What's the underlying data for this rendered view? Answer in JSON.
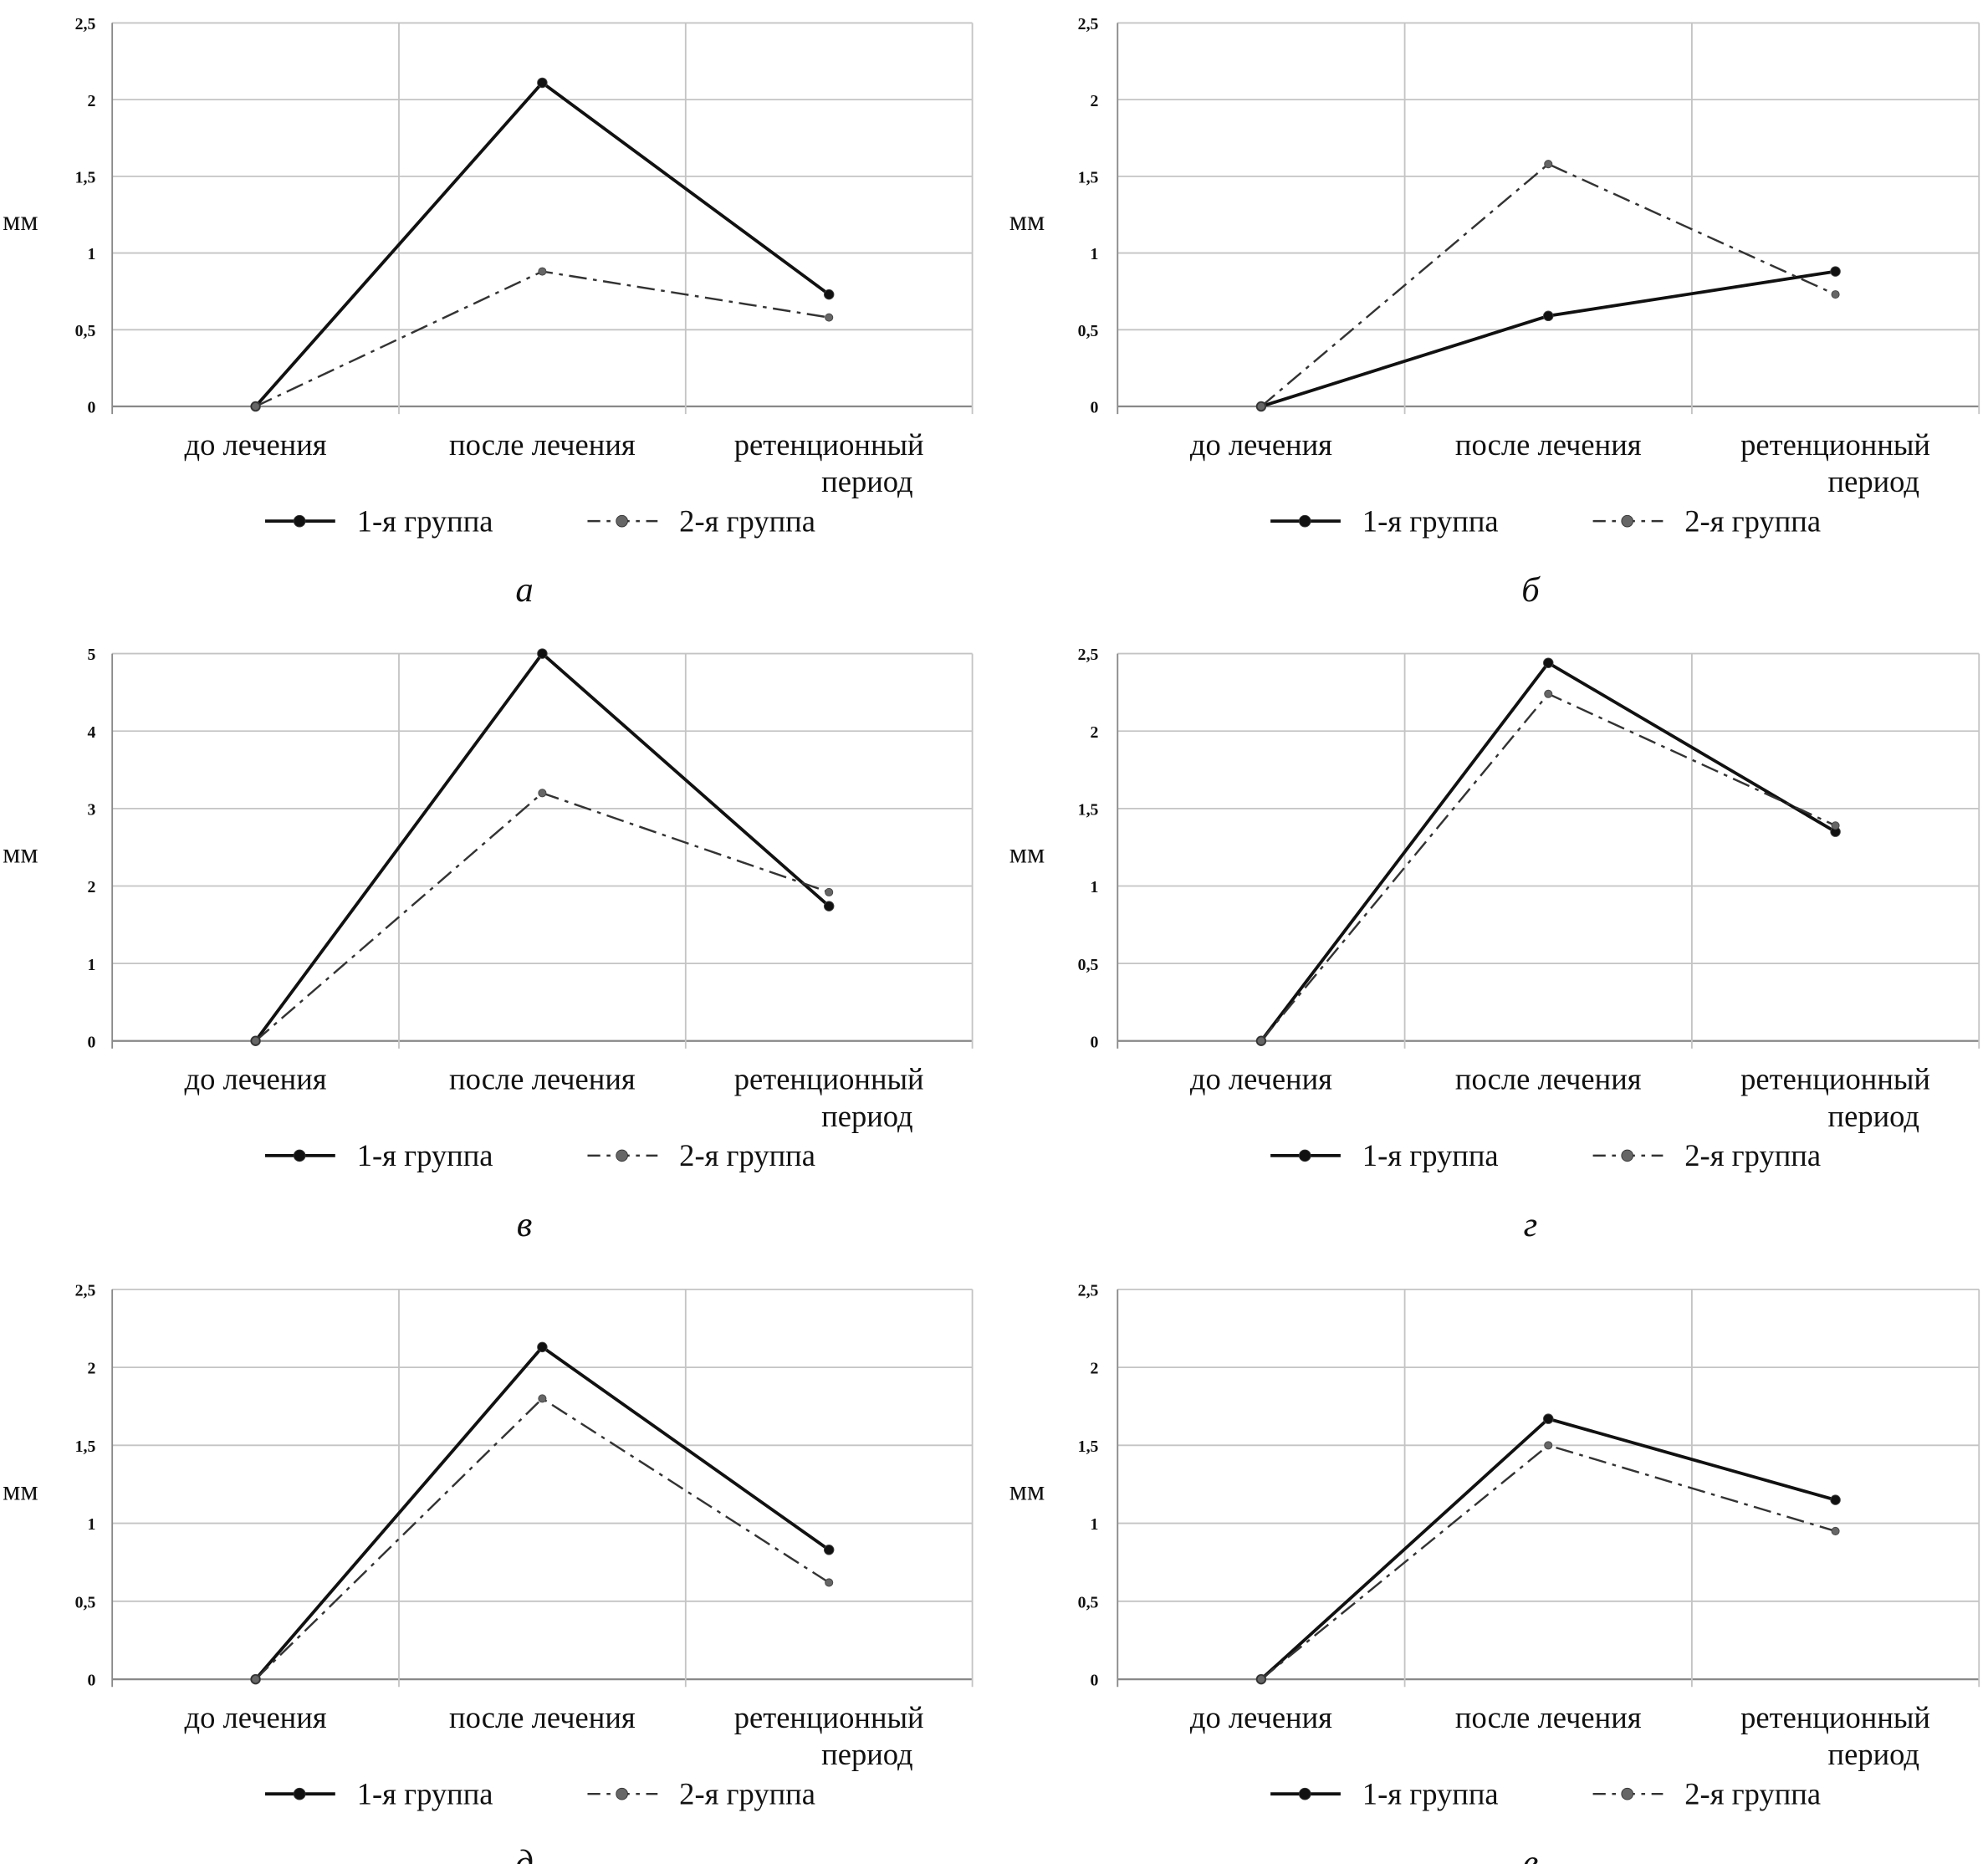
{
  "chart_data": [
    {
      "panel_label": "а",
      "type": "line",
      "ylabel": "мм",
      "categories": [
        "до лечения",
        "после лечения",
        "ретенционный период"
      ],
      "ylim": [
        0,
        2.5
      ],
      "yticks": [
        "0",
        "0,5",
        "1",
        "1,5",
        "2",
        "2,5"
      ],
      "grid": true,
      "legend_placement": "bottom",
      "series": [
        {
          "name": "1-я группа",
          "style": "solid",
          "color": "#111111",
          "values": [
            0,
            2.11,
            0.73
          ]
        },
        {
          "name": "2-я группа",
          "style": "dash-dot",
          "color": "#666666",
          "values": [
            0,
            0.88,
            0.58
          ]
        }
      ]
    },
    {
      "panel_label": "б",
      "type": "line",
      "ylabel": "мм",
      "categories": [
        "до лечения",
        "после лечения",
        "ретенционный период"
      ],
      "ylim": [
        0,
        2.5
      ],
      "yticks": [
        "0",
        "0,5",
        "1",
        "1,5",
        "2",
        "2,5"
      ],
      "grid": true,
      "legend_placement": "bottom",
      "series": [
        {
          "name": "1-я группа",
          "style": "solid",
          "color": "#111111",
          "values": [
            0,
            0.59,
            0.88
          ]
        },
        {
          "name": "2-я группа",
          "style": "dash-dot",
          "color": "#666666",
          "values": [
            0,
            1.58,
            0.73
          ]
        }
      ]
    },
    {
      "panel_label": "в",
      "type": "line",
      "ylabel": "мм",
      "categories": [
        "до лечения",
        "после лечения",
        "ретенционный период"
      ],
      "ylim": [
        0,
        5
      ],
      "yticks": [
        "0",
        "1",
        "2",
        "3",
        "4",
        "5"
      ],
      "grid": true,
      "legend_placement": "bottom",
      "series": [
        {
          "name": "1-я группа",
          "style": "solid",
          "color": "#111111",
          "values": [
            0,
            5.0,
            1.74
          ]
        },
        {
          "name": "2-я группа",
          "style": "dash-dot",
          "color": "#666666",
          "values": [
            0,
            3.2,
            1.92
          ]
        }
      ]
    },
    {
      "panel_label": "г",
      "type": "line",
      "ylabel": "мм",
      "categories": [
        "до лечения",
        "после лечения",
        "ретенционный период"
      ],
      "ylim": [
        0,
        2.5
      ],
      "yticks": [
        "0",
        "0,5",
        "1",
        "1,5",
        "2",
        "2,5"
      ],
      "grid": true,
      "legend_placement": "bottom",
      "series": [
        {
          "name": "1-я группа",
          "style": "solid",
          "color": "#111111",
          "values": [
            0,
            2.44,
            1.35
          ]
        },
        {
          "name": "2-я группа",
          "style": "dash-dot",
          "color": "#666666",
          "values": [
            0,
            2.24,
            1.39
          ]
        }
      ]
    },
    {
      "panel_label": "д",
      "type": "line",
      "ylabel": "мм",
      "categories": [
        "до лечения",
        "после лечения",
        "ретенционный период"
      ],
      "ylim": [
        0,
        2.5
      ],
      "yticks": [
        "0",
        "0,5",
        "1",
        "1,5",
        "2",
        "2,5"
      ],
      "grid": true,
      "legend_placement": "bottom",
      "series": [
        {
          "name": "1-я группа",
          "style": "solid",
          "color": "#111111",
          "values": [
            0,
            2.13,
            0.83
          ]
        },
        {
          "name": "2-я группа",
          "style": "dash-dot",
          "color": "#666666",
          "values": [
            0,
            1.8,
            0.62
          ]
        }
      ]
    },
    {
      "panel_label": "е",
      "type": "line",
      "ylabel": "мм",
      "categories": [
        "до лечения",
        "после лечения",
        "ретенционный период"
      ],
      "ylim": [
        0,
        2.5
      ],
      "yticks": [
        "0",
        "0,5",
        "1",
        "1,5",
        "2",
        "2,5"
      ],
      "grid": true,
      "legend_placement": "bottom",
      "series": [
        {
          "name": "1-я группа",
          "style": "solid",
          "color": "#111111",
          "values": [
            0,
            1.67,
            1.15
          ]
        },
        {
          "name": "2-я группа",
          "style": "dash-dot",
          "color": "#666666",
          "values": [
            0,
            1.5,
            0.95
          ]
        }
      ]
    }
  ]
}
